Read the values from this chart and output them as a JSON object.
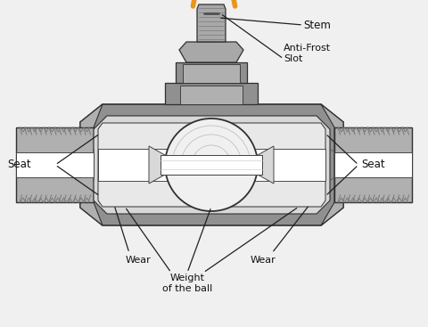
{
  "bg_color": "#f0f0f0",
  "colors": {
    "body_outer": "#909090",
    "body_mid": "#b0b0b0",
    "body_light": "#c8c8c8",
    "body_lighter": "#d8d8d8",
    "body_white": "#e8e8e8",
    "ball_fill": "#e0e0e0",
    "ball_light": "#f0f0f0",
    "thread_dark": "#787878",
    "stem_gray": "#a8a8a8",
    "handle_orange": "#e8951e",
    "handle_dark": "#c07010",
    "outline": "#303030",
    "ann_line": "#202020",
    "white": "#ffffff"
  },
  "labels": {
    "stem": "Stem",
    "anti_frost": "Anti-Frost\nSlot",
    "seat_left": "Seat",
    "seat_right": "Seat",
    "wear_left": "Wear",
    "wear_right": "Wear",
    "weight": "Weight\nof the ball"
  },
  "figsize": [
    4.8,
    3.67
  ],
  "dpi": 100
}
